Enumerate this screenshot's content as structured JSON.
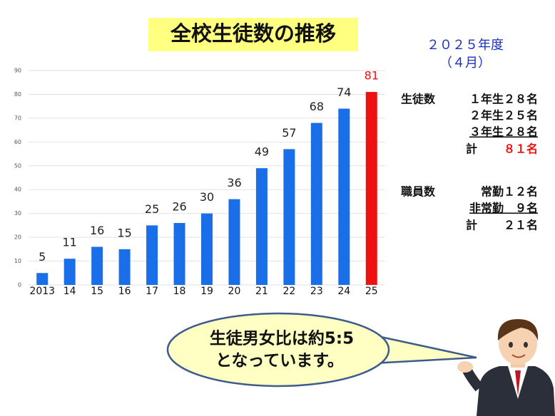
{
  "chart_data": {
    "type": "bar",
    "title": "全校生徒数の推移",
    "categories": [
      "2013",
      "14",
      "15",
      "16",
      "17",
      "18",
      "19",
      "20",
      "21",
      "22",
      "23",
      "24",
      "25"
    ],
    "values": [
      5,
      11,
      16,
      15,
      25,
      26,
      30,
      36,
      49,
      57,
      68,
      74,
      81
    ],
    "colors": [
      "#1a6ee8",
      "#1a6ee8",
      "#1a6ee8",
      "#1a6ee8",
      "#1a6ee8",
      "#1a6ee8",
      "#1a6ee8",
      "#1a6ee8",
      "#1a6ee8",
      "#1a6ee8",
      "#1a6ee8",
      "#1a6ee8",
      "#ee1111"
    ],
    "value_label_colors": [
      "#222",
      "#222",
      "#222",
      "#222",
      "#222",
      "#222",
      "#222",
      "#222",
      "#222",
      "#222",
      "#222",
      "#222",
      "#ee1111"
    ],
    "ylim": [
      0,
      90
    ],
    "yticks": [
      0,
      10,
      20,
      30,
      40,
      50,
      60,
      70,
      80,
      90
    ],
    "grid": true
  },
  "header": {
    "year": "２０２５年度",
    "month": "（４月）"
  },
  "students": {
    "label": "生徒数",
    "rows": [
      "１年生２８名",
      "２年生２５名",
      "３年生２８名"
    ],
    "total_label": "計",
    "total_value": "８１名"
  },
  "staff": {
    "label": "職員数",
    "rows": [
      "常勤１２名",
      "非常勤　９名"
    ],
    "total_label": "計",
    "total_value": "２１名"
  },
  "bubble": {
    "lines": [
      "生徒男女比は約5:5",
      "となっています。"
    ]
  }
}
